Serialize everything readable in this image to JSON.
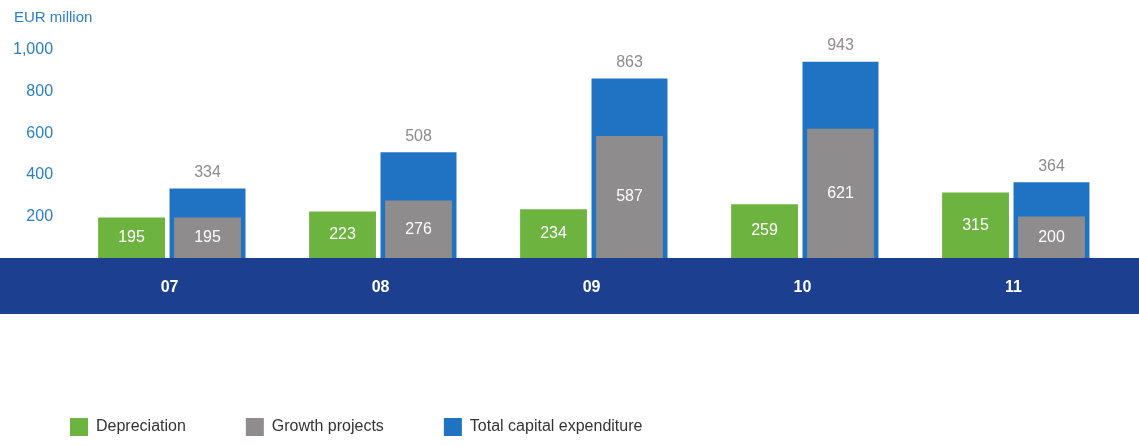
{
  "chart_data": {
    "type": "bar",
    "ylabel": "EUR million",
    "categories": [
      "07",
      "08",
      "09",
      "10",
      "11"
    ],
    "series": [
      {
        "name": "Depreciation",
        "color": "#6cb33f",
        "values": [
          195,
          223,
          234,
          259,
          315
        ],
        "value_labels": [
          "195",
          "223",
          "234",
          "259",
          "315"
        ]
      },
      {
        "name": "Growth projects",
        "color": "#8e8c8c",
        "values": [
          195,
          276,
          587,
          621,
          200
        ],
        "value_labels": [
          "195",
          "276",
          "587",
          "621",
          "200"
        ]
      },
      {
        "name": "Total capital expenditure",
        "color": "#1f73c2",
        "values": [
          334,
          508,
          863,
          943,
          364
        ],
        "value_labels": [
          "334",
          "508",
          "863",
          "943",
          "364"
        ]
      }
    ],
    "ylim": [
      0,
      1000
    ],
    "yticks": [
      200,
      400,
      600,
      800,
      {
        "value": 1000,
        "label": "1,000"
      }
    ],
    "grid": false,
    "legend": "bottom"
  }
}
